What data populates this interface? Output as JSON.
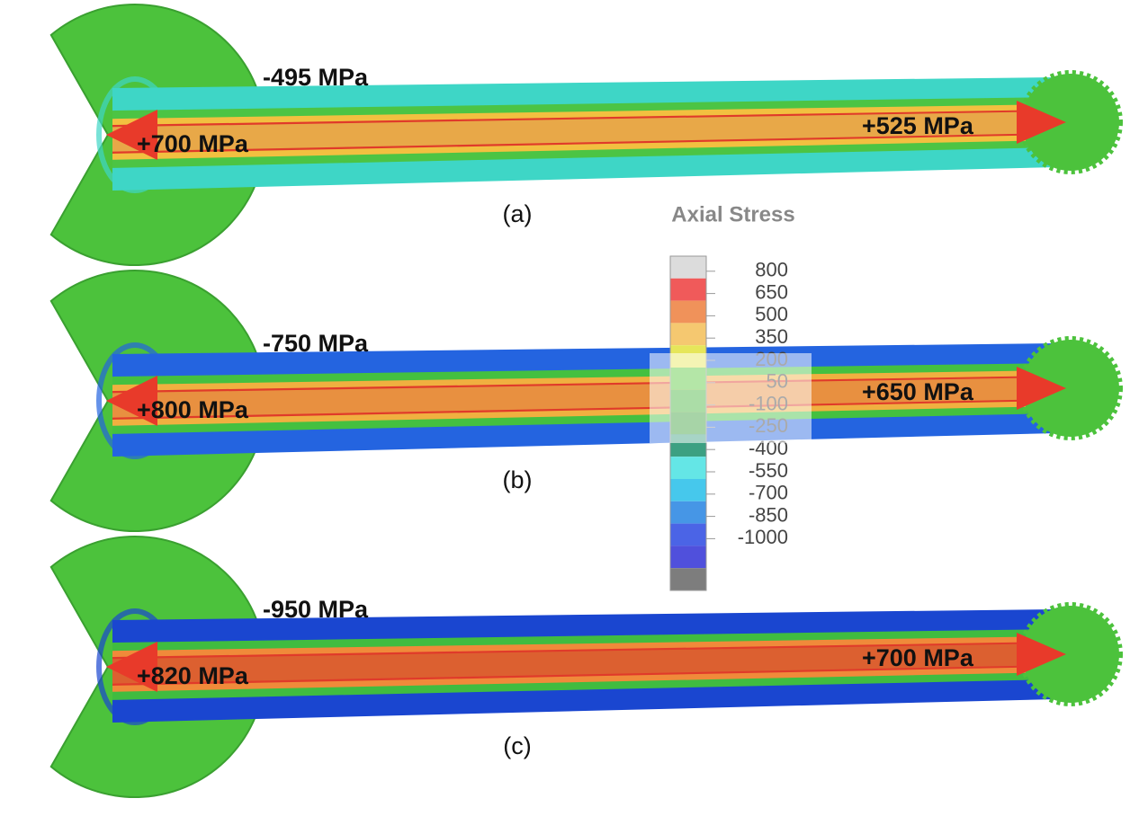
{
  "panels": [
    {
      "label": "(a)",
      "compression": "-495 MPa",
      "tension_left": "+700 MPa",
      "tension_right": "+525 MPa"
    },
    {
      "label": "(b)",
      "compression": "-750 MPa",
      "tension_left": "+800 MPa",
      "tension_right": "+650 MPa"
    },
    {
      "label": "(c)",
      "compression": "-950 MPa",
      "tension_left": "+820 MPa",
      "tension_right": "+700 MPa"
    }
  ],
  "legend": {
    "title": "Axial Stress",
    "labels": [
      "800",
      "650",
      "500",
      "350",
      "200",
      "50",
      "-100",
      "-250",
      "-400",
      "-550",
      "-700",
      "-850",
      "-1000"
    ],
    "colors": [
      "#dcdcdc",
      "#f05a5a",
      "#f0925a",
      "#f5c870",
      "#e6e65a",
      "#5ac83c",
      "#46b43c",
      "#3ca03c",
      "#3ca082",
      "#64e6e6",
      "#46c8ec",
      "#4696e6",
      "#4b64e6",
      "#5050dc",
      "#7d7d7d"
    ]
  }
}
